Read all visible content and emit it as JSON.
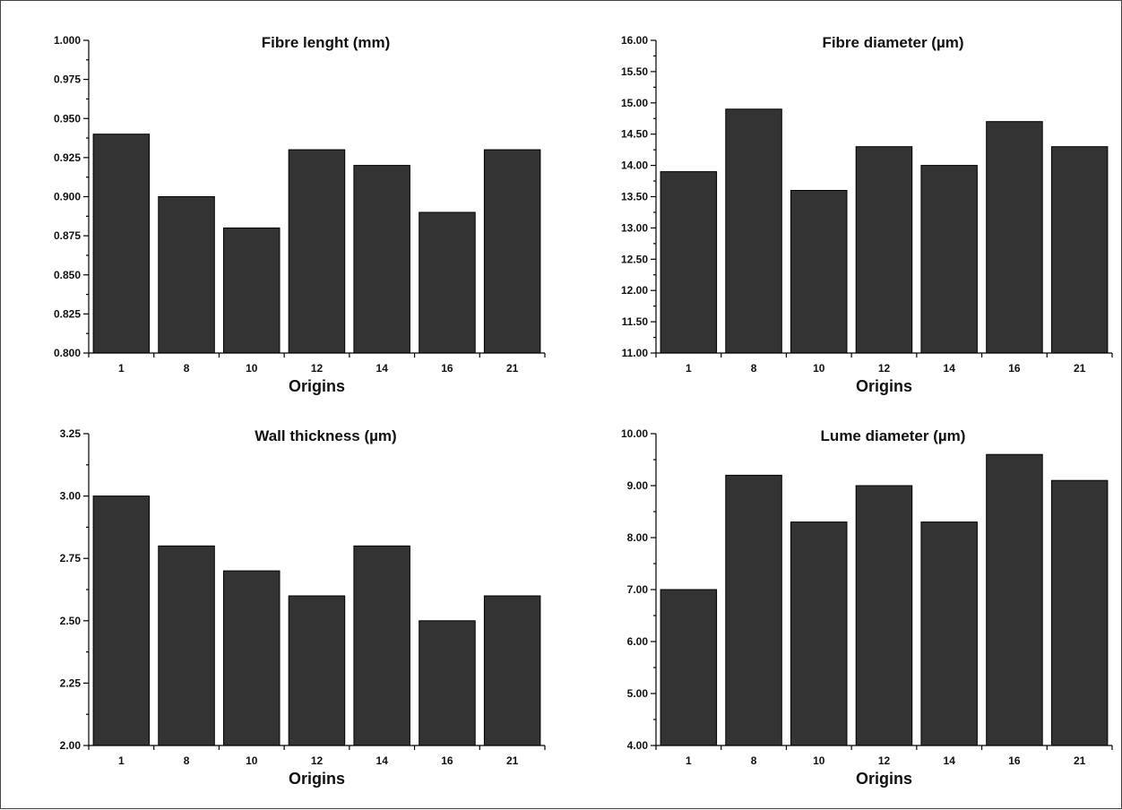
{
  "chart_data": [
    {
      "type": "bar",
      "title": "Fibre lenght (mm)",
      "xlabel": "Origins",
      "ylabel": "",
      "categories": [
        "1",
        "8",
        "10",
        "12",
        "14",
        "16",
        "21"
      ],
      "values": [
        0.94,
        0.9,
        0.88,
        0.93,
        0.92,
        0.89,
        0.93
      ],
      "ylim": [
        0.8,
        1.0
      ],
      "yticks": [
        "0.800",
        "0.825",
        "0.850",
        "0.875",
        "0.900",
        "0.925",
        "0.950",
        "0.975",
        "1.000"
      ],
      "ymajor_step": 0.025,
      "yminor_per_major": 1,
      "bar_color": "#333333",
      "grid": false
    },
    {
      "type": "bar",
      "title": "Fibre diameter (µm)",
      "xlabel": "Origins",
      "ylabel": "",
      "categories": [
        "1",
        "8",
        "10",
        "12",
        "14",
        "16",
        "21"
      ],
      "values": [
        13.9,
        14.9,
        13.6,
        14.3,
        14.0,
        14.7,
        14.3
      ],
      "ylim": [
        11.0,
        16.0
      ],
      "yticks": [
        "11.00",
        "11.50",
        "12.00",
        "12.50",
        "13.00",
        "13.50",
        "14.00",
        "14.50",
        "15.00",
        "15.50",
        "16.00"
      ],
      "ymajor_step": 0.5,
      "yminor_per_major": 1,
      "bar_color": "#333333",
      "grid": false
    },
    {
      "type": "bar",
      "title": "Wall thickness (µm)",
      "xlabel": "Origins",
      "ylabel": "",
      "categories": [
        "1",
        "8",
        "10",
        "12",
        "14",
        "16",
        "21"
      ],
      "values": [
        3.0,
        2.8,
        2.7,
        2.6,
        2.8,
        2.5,
        2.6
      ],
      "ylim": [
        2.0,
        3.25
      ],
      "yticks": [
        "2.00",
        "2.25",
        "2.50",
        "2.75",
        "3.00",
        "3.25"
      ],
      "ymajor_step": 0.25,
      "yminor_per_major": 1,
      "bar_color": "#333333",
      "grid": false
    },
    {
      "type": "bar",
      "title": "Lume diameter (µm)",
      "xlabel": "Origins",
      "ylabel": "",
      "categories": [
        "1",
        "8",
        "10",
        "12",
        "14",
        "16",
        "21"
      ],
      "values": [
        7.0,
        9.2,
        8.3,
        9.0,
        8.3,
        9.6,
        9.1
      ],
      "ylim": [
        4.0,
        10.0
      ],
      "yticks": [
        "4.00",
        "5.00",
        "6.00",
        "7.00",
        "8.00",
        "9.00",
        "10.00"
      ],
      "ymajor_step": 1.0,
      "yminor_per_major": 1,
      "bar_color": "#333333",
      "grid": false
    }
  ]
}
